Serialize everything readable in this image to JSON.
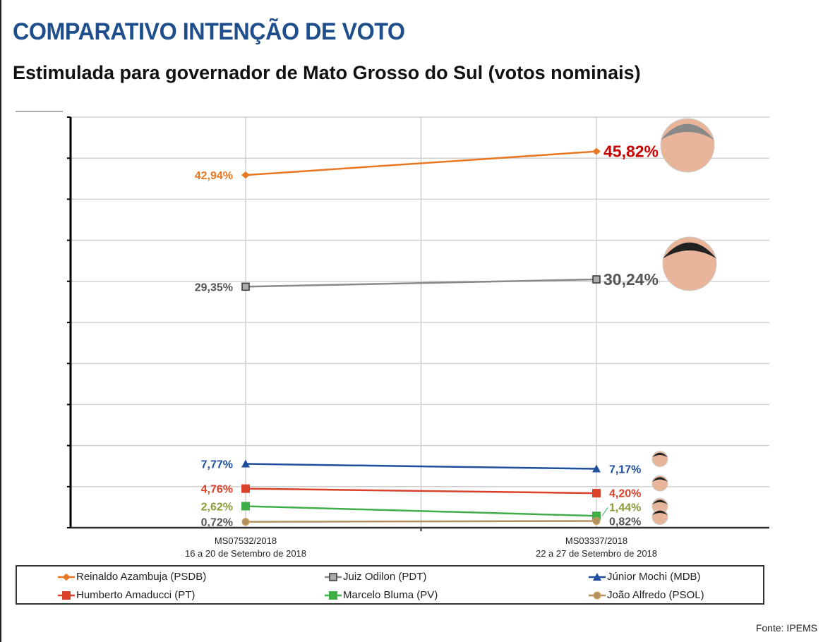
{
  "title": "COMPARATIVO INTENÇÃO DE VOTO",
  "subtitle": "Estimulada para governador de Mato Grosso do Sul  (votos nominais)",
  "source": "Fonte: IPEMS",
  "chart_data": {
    "type": "line",
    "ylim": [
      0,
      50
    ],
    "ygrid_step": 5,
    "grid": true,
    "legend_position": "bottom",
    "categories": [
      {
        "code": "MS07532/2018",
        "period": "16 a 20 de Setembro de 2018"
      },
      {
        "code": "MS03337/2018",
        "period": "22 a 27 de Setembro de 2018"
      }
    ],
    "series": [
      {
        "name": "Reinaldo Azambuja (PSDB)",
        "values": [
          42.94,
          45.82
        ],
        "labels": [
          "42,94%",
          "45,82%"
        ],
        "color": "#e87722",
        "label_colors": [
          "#e87722",
          "#cc0000"
        ],
        "marker": "diamond",
        "photo": true
      },
      {
        "name": "Juiz Odilon (PDT)",
        "values": [
          29.35,
          30.24
        ],
        "labels": [
          "29,35%",
          "30,24%"
        ],
        "color": "#888888",
        "label_colors": [
          "#555555",
          "#555555"
        ],
        "marker": "square-gray",
        "photo": true
      },
      {
        "name": "Júnior Mochi (MDB)",
        "values": [
          7.77,
          7.17
        ],
        "labels": [
          "7,77%",
          "7,17%"
        ],
        "color": "#1f4e9c",
        "label_colors": [
          "#1f4e9c",
          "#1f4e9c"
        ],
        "marker": "triangle",
        "photo": true
      },
      {
        "name": "Humberto Amaducci (PT)",
        "values": [
          4.76,
          4.2
        ],
        "labels": [
          "4,76%",
          "4,20%"
        ],
        "color": "#d9412b",
        "label_colors": [
          "#d9412b",
          "#d9412b"
        ],
        "marker": "square",
        "photo": true
      },
      {
        "name": "Marcelo Bluma (PV)",
        "values": [
          2.62,
          1.44
        ],
        "labels": [
          "2,62%",
          "1,44%"
        ],
        "color": "#3fae49",
        "label_colors": [
          "#8a9a3a",
          "#8a9a3a"
        ],
        "marker": "square",
        "photo": true
      },
      {
        "name": "João Alfredo (PSOL)",
        "values": [
          0.72,
          0.82
        ],
        "labels": [
          "0,72%",
          "0,82%"
        ],
        "color": "#b09060",
        "label_colors": [
          "#555555",
          "#555555"
        ],
        "marker": "circle",
        "photo": true
      }
    ]
  }
}
